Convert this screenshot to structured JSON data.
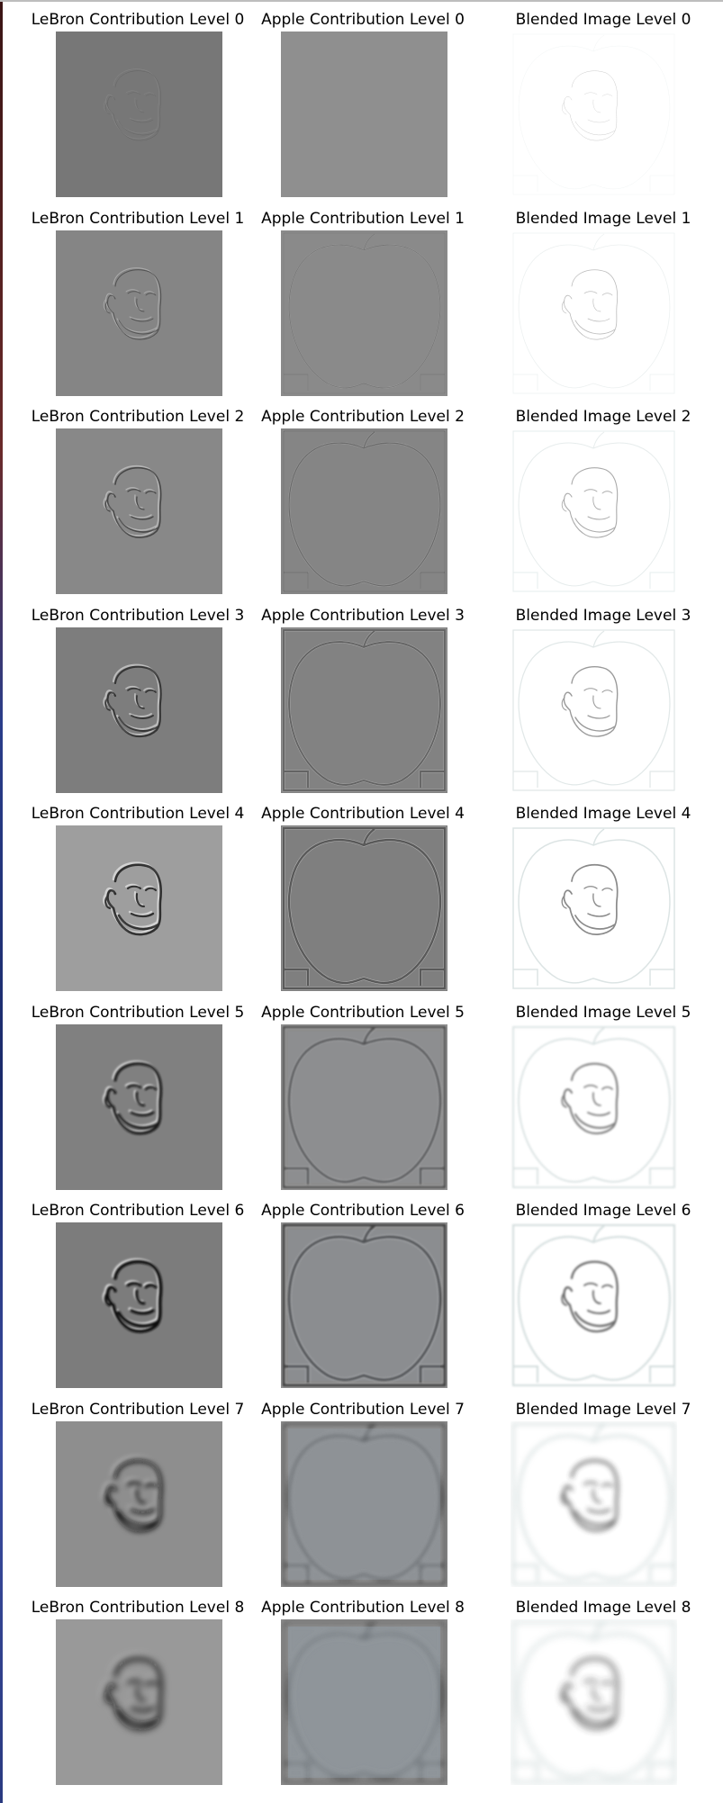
{
  "figure": {
    "rows": [
      {
        "level": 0,
        "lebron_title": "LeBron Contribution Level 0",
        "apple_title": "Apple Contribution Level 0",
        "blend_title": "Blended Image Level 0",
        "lebron_bg": "#777777",
        "apple_bg": "#8f8f8f"
      },
      {
        "level": 1,
        "lebron_title": "LeBron Contribution Level 1",
        "apple_title": "Apple Contribution Level 1",
        "blend_title": "Blended Image Level 1",
        "lebron_bg": "#858585",
        "apple_bg": "#8a8a8a"
      },
      {
        "level": 2,
        "lebron_title": "LeBron Contribution Level 2",
        "apple_title": "Apple Contribution Level 2",
        "blend_title": "Blended Image Level 2",
        "lebron_bg": "#888888",
        "apple_bg": "#858585"
      },
      {
        "level": 3,
        "lebron_title": "LeBron Contribution Level 3",
        "apple_title": "Apple Contribution Level 3",
        "blend_title": "Blended Image Level 3",
        "lebron_bg": "#7d7d7d",
        "apple_bg": "#828282"
      },
      {
        "level": 4,
        "lebron_title": "LeBron Contribution Level 4",
        "apple_title": "Apple Contribution Level 4",
        "blend_title": "Blended Image Level 4",
        "lebron_bg": "#9e9e9e",
        "apple_bg": "#7f7f7f"
      },
      {
        "level": 5,
        "lebron_title": "LeBron Contribution Level 5",
        "apple_title": "Apple Contribution Level 5",
        "blend_title": "Blended Image Level 5",
        "lebron_bg": "#808080",
        "apple_bg": "#8c8c8c"
      },
      {
        "level": 6,
        "lebron_title": "LeBron Contribution Level 6",
        "apple_title": "Apple Contribution Level 6",
        "blend_title": "Blended Image Level 6",
        "lebron_bg": "#7c7c7c",
        "apple_bg": "#888888"
      },
      {
        "level": 7,
        "lebron_title": "LeBron Contribution Level 7",
        "apple_title": "Apple Contribution Level 7",
        "blend_title": "Blended Image Level 7",
        "lebron_bg": "#8e8e8e",
        "apple_bg": "#8a8a8a"
      },
      {
        "level": 8,
        "lebron_title": "LeBron Contribution Level 8",
        "apple_title": "Apple Contribution Level 8",
        "blend_title": "Blended Image Level 8",
        "lebron_bg": "#999999",
        "apple_bg": "#8b8b8b"
      }
    ]
  }
}
